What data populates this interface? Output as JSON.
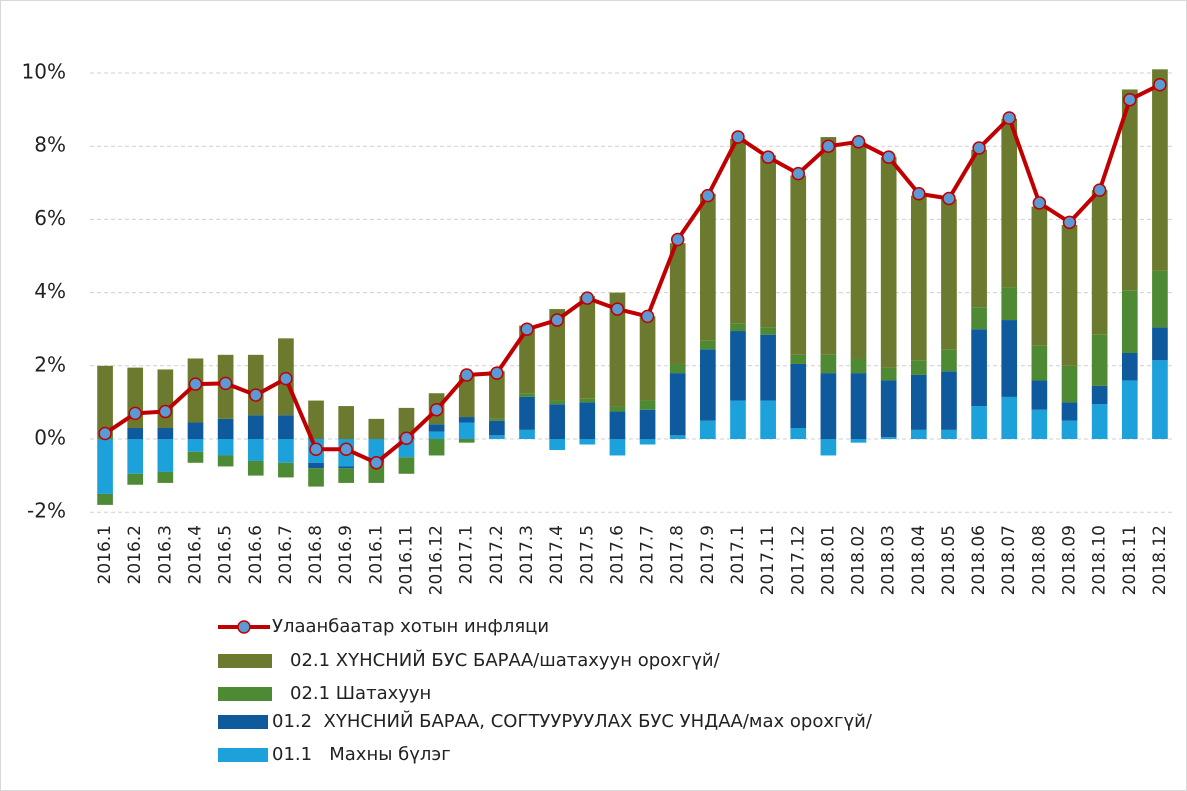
{
  "chart_data": {
    "type": "bar",
    "stacked": true,
    "categories": [
      "2016.1",
      "2016.2",
      "2016.3",
      "2016.4",
      "2016.5",
      "2016.6",
      "2016.7",
      "2016.8",
      "2016.9",
      "2016.1",
      "2016.11",
      "2016.12",
      "2017.1",
      "2017.2",
      "2017.3",
      "2017.4",
      "2017.5",
      "2017.6",
      "2017.7",
      "2017.8",
      "2017.9",
      "2017.1",
      "2017.11",
      "2017.12",
      "2018.01",
      "2018.02",
      "2018.03",
      "2018.04",
      "2018.05",
      "2018.06",
      "2018.07",
      "2018.08",
      "2018.09",
      "2018.10",
      "2018.11",
      "2018.12"
    ],
    "series": [
      {
        "name": "01.1   Махны бүлэг",
        "color": "#1da1db",
        "values": [
          -1.5,
          -0.95,
          -0.9,
          -0.35,
          -0.45,
          -0.6,
          -0.65,
          -0.65,
          -0.75,
          -0.55,
          -0.5,
          0.2,
          0.45,
          0.1,
          0.25,
          -0.3,
          -0.15,
          -0.45,
          -0.15,
          0.1,
          0.5,
          1.05,
          1.05,
          0.3,
          -0.45,
          -0.1,
          0.05,
          0.25,
          0.25,
          0.9,
          1.15,
          0.8,
          0.5,
          0.95,
          1.6,
          2.15
        ]
      },
      {
        "name": "01.2  ХҮНСНИЙ БАРАА, СОГТУУРУУЛАХ БУС УНДАА/мах орохгүй/",
        "color": "#0f5a9c",
        "values": [
          0,
          0.3,
          0.3,
          0.45,
          0.55,
          0.65,
          0.65,
          -0.15,
          -0.05,
          -0.1,
          0.1,
          0.2,
          0.15,
          0.4,
          0.9,
          0.95,
          1.0,
          0.75,
          0.8,
          1.7,
          1.95,
          1.9,
          1.8,
          1.75,
          1.8,
          1.8,
          1.55,
          1.5,
          1.6,
          2.1,
          2.1,
          0.8,
          0.5,
          0.5,
          0.75,
          0.9
        ]
      },
      {
        "name": "02.1 Шатахуун",
        "color": "#4e8a34",
        "values": [
          -0.3,
          -0.3,
          -0.3,
          -0.3,
          -0.3,
          -0.4,
          -0.4,
          -0.5,
          -0.4,
          -0.55,
          -0.45,
          -0.45,
          -0.1,
          0.05,
          0.1,
          0.1,
          0.1,
          0.15,
          0.25,
          0.25,
          0.25,
          0.2,
          0.2,
          0.25,
          0.5,
          0.4,
          0.35,
          0.4,
          0.6,
          0.6,
          0.9,
          0.95,
          1.0,
          1.4,
          1.7,
          1.55
        ]
      },
      {
        "name": "02.1 ХҮНСНИЙ БУС БАРАА/шатахуун орохгүй/",
        "color": "#6b7a2e",
        "values": [
          2.0,
          1.65,
          1.6,
          1.75,
          1.75,
          1.65,
          2.1,
          1.05,
          0.9,
          0.55,
          0.75,
          0.85,
          1.15,
          1.3,
          1.85,
          2.5,
          2.8,
          3.1,
          2.3,
          3.3,
          4.0,
          5.05,
          4.7,
          4.9,
          5.95,
          5.9,
          5.75,
          4.5,
          4.1,
          4.3,
          4.6,
          3.8,
          3.85,
          3.95,
          5.5,
          5.5
        ]
      },
      {
        "name": "Улаанбаатар хотын инфляци",
        "type": "line",
        "color": "#c00000",
        "marker_color": "#5b9bd5",
        "values": [
          0.15,
          0.7,
          0.75,
          1.5,
          1.52,
          1.2,
          1.65,
          -0.28,
          -0.28,
          -0.65,
          0.02,
          0.8,
          1.75,
          1.8,
          3.0,
          3.25,
          3.85,
          3.55,
          3.35,
          5.45,
          6.65,
          8.25,
          7.7,
          7.25,
          8.0,
          8.12,
          7.7,
          6.7,
          6.57,
          7.95,
          8.77,
          6.45,
          5.92,
          6.8,
          9.27,
          9.68
        ]
      }
    ],
    "ylim": [
      -2,
      10.5
    ],
    "yticks": [
      {
        "value": -2,
        "label": "-2%"
      },
      {
        "value": 0,
        "label": "0%"
      },
      {
        "value": 2,
        "label": "2%"
      },
      {
        "value": 4,
        "label": "4%"
      },
      {
        "value": 6,
        "label": "6%"
      },
      {
        "value": 8,
        "label": "8%"
      },
      {
        "value": 10,
        "label": "10%"
      }
    ],
    "grid": true
  }
}
